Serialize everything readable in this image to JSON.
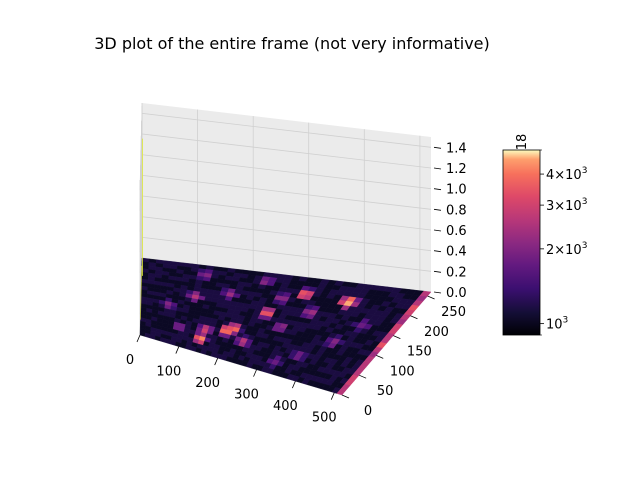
{
  "chart_data": {
    "type": "heatmap",
    "title": "3D plot of the entire frame (not very informative)",
    "x_ticks": [
      0,
      100,
      200,
      300,
      400,
      500
    ],
    "y_ticks": [
      0,
      50,
      100,
      150,
      200,
      250
    ],
    "z_ticks": [
      "0.0",
      "0.2",
      "0.4",
      "0.6",
      "0.8",
      "1.0",
      "1.2",
      "1.4"
    ],
    "xlim": [
      0,
      520
    ],
    "ylim": [
      0,
      260
    ],
    "zlim": [
      0,
      1.5
    ],
    "colormap": "magma",
    "colorbar": {
      "scale": "log",
      "range": [
        900,
        5000
      ],
      "tick_labels": [
        "10^3",
        "2×10^3",
        "3×10^3",
        "4×10^3"
      ],
      "tick_values": [
        1000,
        2000,
        3000,
        4000
      ],
      "offset_text": "18"
    },
    "hot_spots": [
      {
        "x": 395,
        "y": 210,
        "level": 0.92
      },
      {
        "x": 310,
        "y": 215,
        "level": 0.75
      },
      {
        "x": 260,
        "y": 150,
        "level": 0.72
      },
      {
        "x": 195,
        "y": 80,
        "level": 0.85
      },
      {
        "x": 210,
        "y": 90,
        "level": 0.78
      },
      {
        "x": 145,
        "y": 40,
        "level": 0.82
      },
      {
        "x": 150,
        "y": 70,
        "level": 0.62
      },
      {
        "x": 240,
        "y": 60,
        "level": 0.55
      },
      {
        "x": 110,
        "y": 160,
        "level": 0.55
      },
      {
        "x": 340,
        "y": 170,
        "level": 0.5
      },
      {
        "x": 275,
        "y": 195,
        "level": 0.45
      },
      {
        "x": 60,
        "y": 120,
        "level": 0.42
      },
      {
        "x": 420,
        "y": 110,
        "level": 0.4
      },
      {
        "x": 175,
        "y": 185,
        "level": 0.45
      },
      {
        "x": 90,
        "y": 60,
        "level": 0.4
      },
      {
        "x": 370,
        "y": 60,
        "level": 0.38
      },
      {
        "x": 230,
        "y": 235,
        "level": 0.4
      },
      {
        "x": 300,
        "y": 120,
        "level": 0.42
      },
      {
        "x": 450,
        "y": 160,
        "level": 0.35
      },
      {
        "x": 120,
        "y": 230,
        "level": 0.38
      },
      {
        "x": 330,
        "y": 30,
        "level": 0.36
      }
    ],
    "colors": {
      "pane": "#f2f2f2",
      "grid": "#d0d0d0",
      "frame_edge": "#e1eb3a"
    }
  }
}
